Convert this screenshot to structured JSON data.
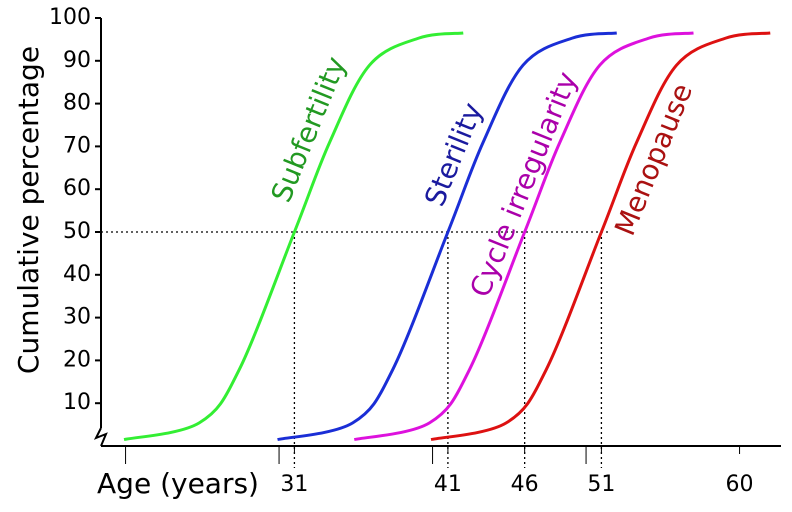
{
  "chart_data": {
    "type": "line",
    "y_label": "Cumulative percentage",
    "x_label": "Age (years)",
    "xlim": [
      18.4,
      62.7
    ],
    "ylim": [
      0,
      100
    ],
    "yticks": [
      10,
      20,
      30,
      40,
      50,
      60,
      70,
      80,
      90,
      100
    ],
    "xticks": [
      31,
      41,
      46,
      51,
      60
    ],
    "minor_xticks": [
      20,
      30,
      40,
      50
    ],
    "dotted_x": [
      31,
      41,
      46,
      51
    ],
    "dotted_y": 50,
    "series": [
      {
        "name": "Subfertility",
        "color": "#33ee33",
        "label_color": "#229922",
        "x": [
          19.9,
          24.8,
          27.4,
          31,
          33.3,
          35.9,
          39.1,
          42
        ],
        "values": [
          1.5,
          5.4,
          17.8,
          50,
          71,
          89,
          95.3,
          96.5
        ]
      },
      {
        "name": "Sterility",
        "color": "#1a2ed6",
        "label_color": "#1a1a9e",
        "x": [
          29.9,
          34.8,
          37.4,
          41,
          43.3,
          45.9,
          49.1,
          52
        ],
        "values": [
          1.5,
          5.4,
          17.8,
          50,
          71,
          89,
          95.3,
          96.5
        ]
      },
      {
        "name": "Cycle irregularity",
        "color": "#dd11dd",
        "label_color": "#aa00aa",
        "x": [
          34.9,
          39.8,
          42.4,
          46,
          48.3,
          50.9,
          54.1,
          57
        ],
        "values": [
          1.5,
          5.4,
          17.8,
          50,
          71,
          89,
          95.3,
          96.5
        ]
      },
      {
        "name": "Menopause",
        "color": "#dd1111",
        "label_color": "#aa1111",
        "x": [
          39.9,
          44.8,
          47.4,
          51,
          53.3,
          55.9,
          59.1,
          62
        ],
        "values": [
          1.5,
          5.4,
          17.8,
          50,
          71,
          89,
          95.3,
          96.5
        ]
      }
    ]
  }
}
